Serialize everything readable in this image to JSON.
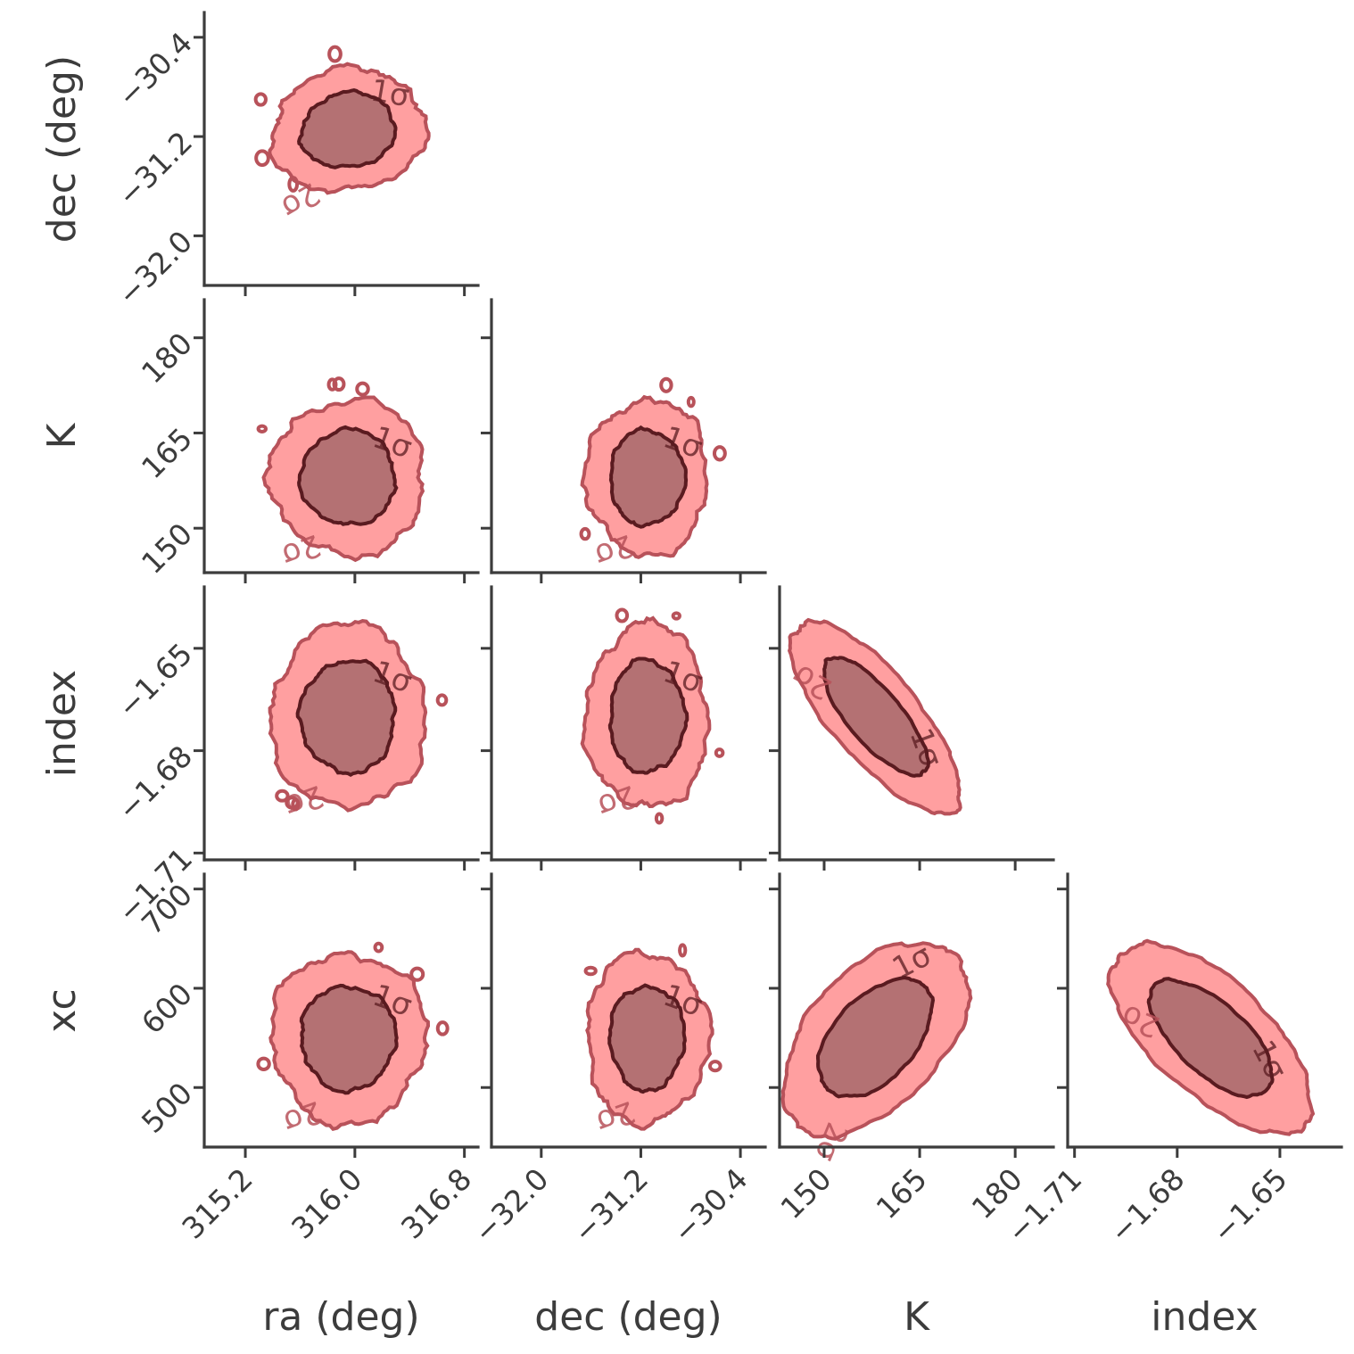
{
  "chart_data": {
    "type": "corner",
    "kind": "2D contour density",
    "contour_levels": [
      "1σ",
      "2σ"
    ],
    "colors": {
      "outer_fill": "#ff9fa0",
      "outer_line": "#b8525a",
      "inner_fill": "#b47173",
      "inner_line": "#5a1b20",
      "axis": "#3c3c3c"
    },
    "parameters": [
      {
        "key": "ra",
        "label": "ra (deg)",
        "range": [
          314.9,
          316.9
        ],
        "ticks": [
          315.2,
          316.0,
          316.8
        ],
        "tick_labels": [
          "315.2",
          "316.0",
          "316.8"
        ],
        "center": 315.95,
        "sigma": 0.23
      },
      {
        "key": "dec",
        "label": "dec (deg)",
        "range": [
          -32.4,
          -30.2
        ],
        "ticks": [
          -32.0,
          -31.2,
          -30.4
        ],
        "tick_labels": [
          "−32.0",
          "−31.2",
          "−30.4"
        ],
        "center": -31.15,
        "sigma": 0.2
      },
      {
        "key": "K",
        "label": "K",
        "range": [
          143.0,
          186.0
        ],
        "ticks": [
          150,
          165,
          180
        ],
        "tick_labels": [
          "150",
          "165",
          "180"
        ],
        "center": 158.0,
        "sigma": 5.0
      },
      {
        "key": "index",
        "label": "index",
        "range": [
          -1.712,
          -1.632
        ],
        "ticks": [
          -1.71,
          -1.68,
          -1.65
        ],
        "tick_labels": [
          "−1.71",
          "−1.68",
          "−1.65"
        ],
        "center": -1.67,
        "sigma": 0.011
      },
      {
        "key": "xc",
        "label": "xc",
        "range": [
          440,
          715
        ],
        "ticks": [
          500,
          600,
          700
        ],
        "tick_labels": [
          "500",
          "600",
          "700"
        ],
        "center": 550,
        "sigma": 35
      }
    ],
    "correlations": [
      {
        "x": "ra",
        "y": "dec",
        "rho": -0.3
      },
      {
        "x": "ra",
        "y": "K",
        "rho": 0.0
      },
      {
        "x": "dec",
        "y": "K",
        "rho": 0.0
      },
      {
        "x": "ra",
        "y": "index",
        "rho": 0.0
      },
      {
        "x": "dec",
        "y": "index",
        "rho": 0.0
      },
      {
        "x": "K",
        "y": "index",
        "rho": -0.98
      },
      {
        "x": "ra",
        "y": "xc",
        "rho": 0.0
      },
      {
        "x": "dec",
        "y": "xc",
        "rho": 0.0
      },
      {
        "x": "K",
        "y": "xc",
        "rho": 0.9
      },
      {
        "x": "index",
        "y": "xc",
        "rho": -0.95
      }
    ]
  }
}
